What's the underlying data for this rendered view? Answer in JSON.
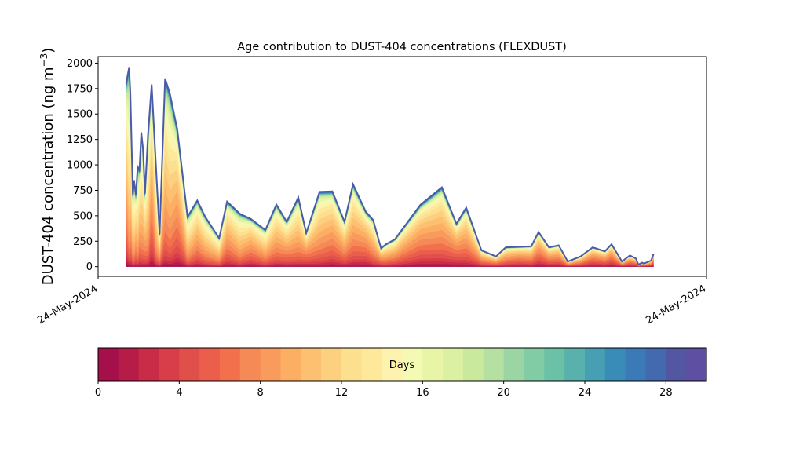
{
  "chart_data": {
    "type": "area",
    "title": "Age contribution to DUST-404 concentrations (FLEXDUST)",
    "ylabel_main": "DUST-404 concentration (ng m",
    "ylabel_exp": "−3",
    "ylabel_close": ")",
    "xlabel": "",
    "x_tick_labels": [
      "24-May-2024",
      "24-May-2024"
    ],
    "y_ticks": [
      0,
      250,
      500,
      750,
      1000,
      1250,
      1500,
      1750,
      2000
    ],
    "y_tick_labels": [
      "0",
      "250",
      "500",
      "750",
      "1000",
      "1250",
      "1500",
      "1750",
      "2000"
    ],
    "ylim": [
      -95,
      2065
    ],
    "xlim": [
      0,
      1
    ],
    "grid": false,
    "legend": "none",
    "x": [
      0.046,
      0.051,
      0.053,
      0.057,
      0.059,
      0.062,
      0.065,
      0.068,
      0.071,
      0.074,
      0.077,
      0.082,
      0.088,
      0.095,
      0.101,
      0.11,
      0.118,
      0.13,
      0.147,
      0.163,
      0.176,
      0.199,
      0.212,
      0.233,
      0.251,
      0.275,
      0.293,
      0.31,
      0.329,
      0.342,
      0.364,
      0.385,
      0.405,
      0.419,
      0.44,
      0.452,
      0.465,
      0.473,
      0.488,
      0.53,
      0.565,
      0.589,
      0.605,
      0.63,
      0.654,
      0.67,
      0.692,
      0.712,
      0.724,
      0.741,
      0.757,
      0.772,
      0.793,
      0.813,
      0.833,
      0.844,
      0.861,
      0.874,
      0.884,
      0.888,
      0.894,
      0.897,
      0.909,
      0.913
    ],
    "total": [
      1800,
      1960,
      1700,
      700,
      850,
      700,
      980,
      950,
      1320,
      1150,
      720,
      1300,
      1790,
      1000,
      320,
      1850,
      1700,
      1350,
      490,
      650,
      490,
      280,
      640,
      520,
      470,
      360,
      610,
      440,
      680,
      330,
      735,
      740,
      440,
      810,
      540,
      460,
      180,
      220,
      270,
      610,
      780,
      420,
      580,
      160,
      100,
      190,
      195,
      200,
      340,
      190,
      210,
      50,
      100,
      190,
      150,
      220,
      50,
      110,
      80,
      20,
      40,
      30,
      60,
      125
    ],
    "colorbar": {
      "label": "Days",
      "min": 0,
      "max": 30,
      "ticks": [
        0,
        4,
        8,
        12,
        16,
        20,
        24,
        28
      ],
      "tick_labels": [
        "0",
        "4",
        "8",
        "12",
        "16",
        "20",
        "24",
        "28"
      ],
      "colors": [
        "#a50f4a",
        "#b71c48",
        "#c82c47",
        "#d83d4a",
        "#e14f4a",
        "#ea5e4b",
        "#f2714c",
        "#f68a56",
        "#f99b5c",
        "#fcae63",
        "#fdc070",
        "#fdd080",
        "#fde08f",
        "#fee89a",
        "#fef3ae",
        "#f4f9b3",
        "#e8f5a6",
        "#dbf0a2",
        "#c9e99d",
        "#b4e0a1",
        "#9bd5a4",
        "#81cca5",
        "#6ac1a5",
        "#58b1ac",
        "#479fb3",
        "#398bb8",
        "#3a7bb7",
        "#4369ae",
        "#5357a2",
        "#5e4fa2"
      ]
    }
  }
}
